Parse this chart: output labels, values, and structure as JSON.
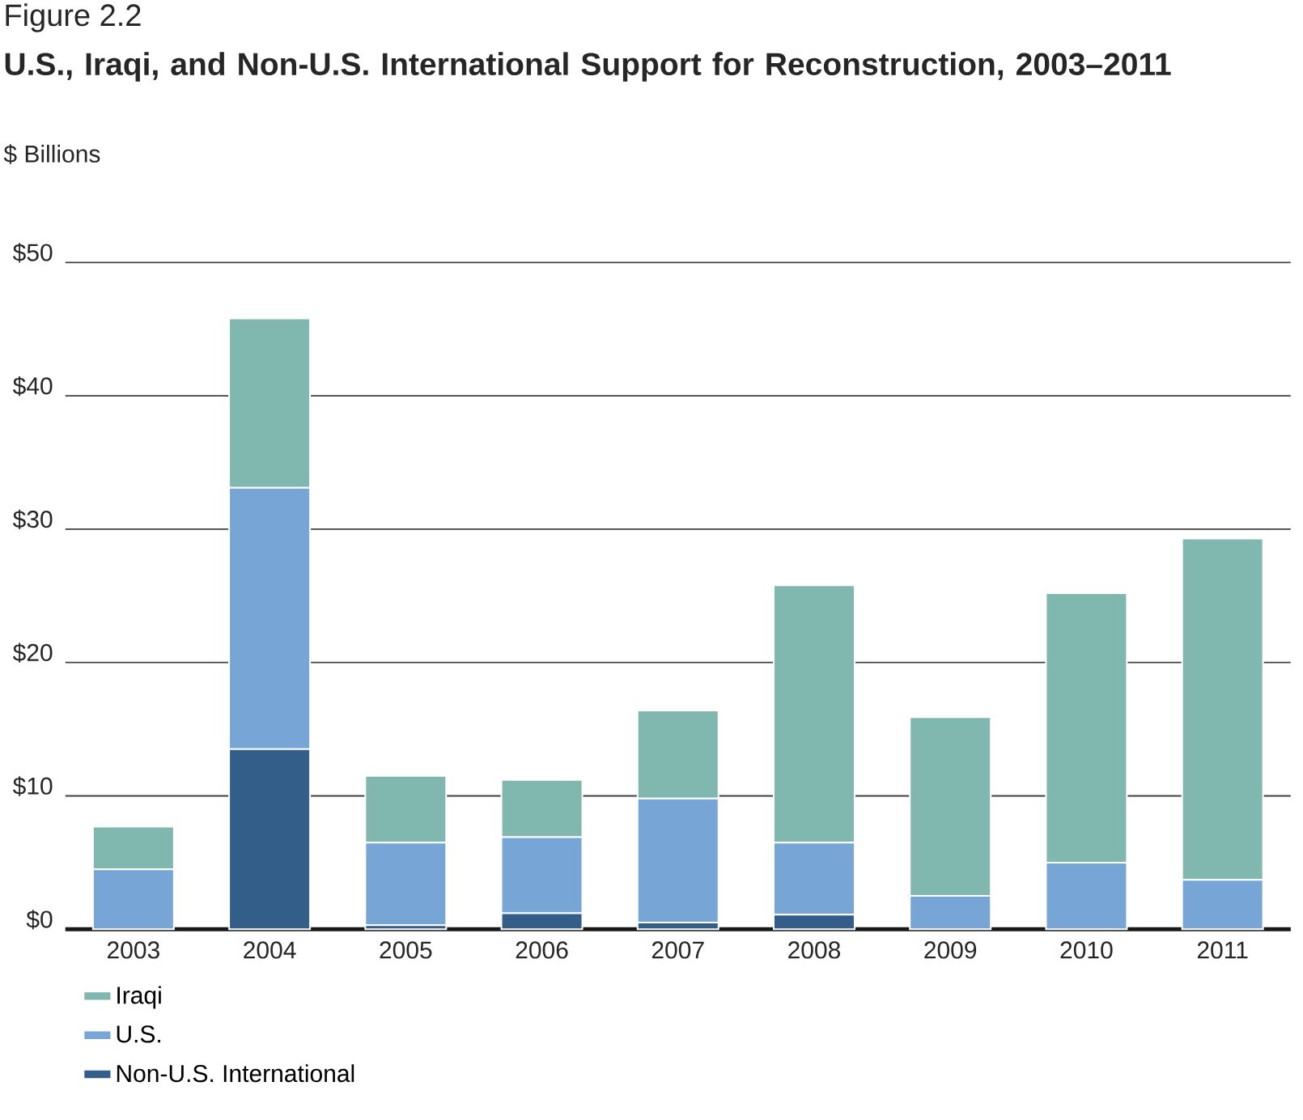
{
  "chart_data": {
    "type": "bar",
    "stacked": true,
    "title": "U.S., Iraqi, and Non-U.S. International Support for Reconstruction, 2003–2011",
    "ylabel": "$ Billions",
    "annotations": [
      "Figure 2.2"
    ],
    "categories": [
      "2003",
      "2004",
      "2005",
      "2006",
      "2007",
      "2008",
      "2009",
      "2010",
      "2011"
    ],
    "series": [
      {
        "name": "Non-U.S. International",
        "color": "#335e8a",
        "values": [
          0,
          13.5,
          0.3,
          1.2,
          0.5,
          1.1,
          0,
          0,
          0
        ]
      },
      {
        "name": "U.S.",
        "color": "#76a5d6",
        "values": [
          4.5,
          19.6,
          6.2,
          5.7,
          9.3,
          5.4,
          2.5,
          5.0,
          3.7
        ]
      },
      {
        "name": "Iraqi",
        "color": "#80b7ae",
        "values": [
          3.2,
          12.7,
          5.0,
          4.3,
          6.6,
          19.3,
          13.4,
          20.2,
          25.6
        ]
      }
    ],
    "ylim": [
      0,
      50
    ],
    "yticks": [
      {
        "value": 0,
        "label": "$0"
      },
      {
        "value": 10,
        "label": "$10"
      },
      {
        "value": 20,
        "label": "$20"
      },
      {
        "value": 30,
        "label": "$30"
      },
      {
        "value": 40,
        "label": "$40"
      },
      {
        "value": 50,
        "label": "$50"
      }
    ],
    "grid": "y",
    "legend": "bottom"
  }
}
